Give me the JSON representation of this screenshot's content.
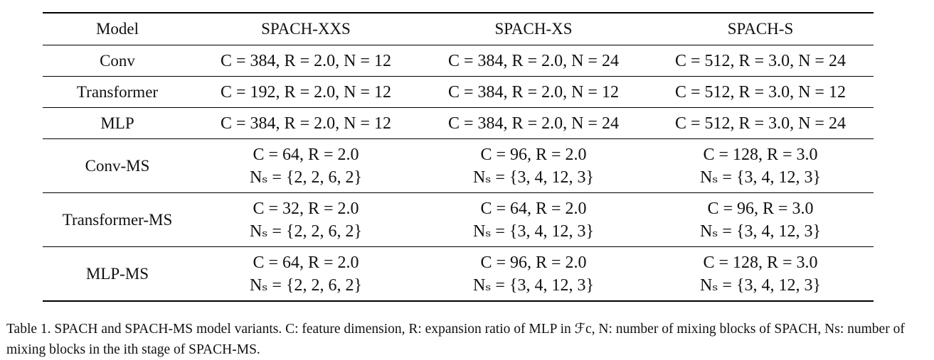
{
  "table": {
    "headers": [
      "Model",
      "SPACH-XXS",
      "SPACH-XS",
      "SPACH-S"
    ],
    "rows": [
      {
        "model": "Conv",
        "cells": [
          [
            "C = 384, R = 2.0, N = 12"
          ],
          [
            "C = 384, R = 2.0, N = 24"
          ],
          [
            "C = 512, R = 3.0, N = 24"
          ]
        ]
      },
      {
        "model": "Transformer",
        "cells": [
          [
            "C = 192, R = 2.0, N = 12"
          ],
          [
            "C = 384, R = 2.0, N = 12"
          ],
          [
            "C = 512, R = 3.0, N = 12"
          ]
        ]
      },
      {
        "model": "MLP",
        "cells": [
          [
            "C = 384, R = 2.0, N = 12"
          ],
          [
            "C = 384, R = 2.0, N = 24"
          ],
          [
            "C = 512, R = 3.0, N = 24"
          ]
        ]
      },
      {
        "model": "Conv-MS",
        "cells": [
          [
            "C = 64, R = 2.0",
            "Nₛ = {2, 2, 6, 2}"
          ],
          [
            "C = 96, R = 2.0",
            "Nₛ = {3, 4, 12, 3}"
          ],
          [
            "C = 128, R = 3.0",
            "Nₛ = {3, 4, 12, 3}"
          ]
        ]
      },
      {
        "model": "Transformer-MS",
        "cells": [
          [
            "C = 32, R = 2.0",
            "Nₛ = {2, 2, 6, 2}"
          ],
          [
            "C = 64, R = 2.0",
            "Nₛ = {3, 4, 12, 3}"
          ],
          [
            "C = 96, R = 3.0",
            "Nₛ = {3, 4, 12, 3}"
          ]
        ]
      },
      {
        "model": "MLP-MS",
        "cells": [
          [
            "C = 64, R = 2.0",
            "Nₛ = {2, 2, 6, 2}"
          ],
          [
            "C = 96, R = 2.0",
            "Nₛ = {3, 4, 12, 3}"
          ],
          [
            "C = 128, R = 3.0",
            "Nₛ = {3, 4, 12, 3}"
          ]
        ]
      }
    ]
  },
  "caption": "Table 1. SPACH and SPACH-MS model variants. C: feature dimension, R: expansion ratio of MLP in ℱc, N: number of mixing blocks of SPACH, Ns: number of mixing blocks in the ith stage of SPACH-MS."
}
